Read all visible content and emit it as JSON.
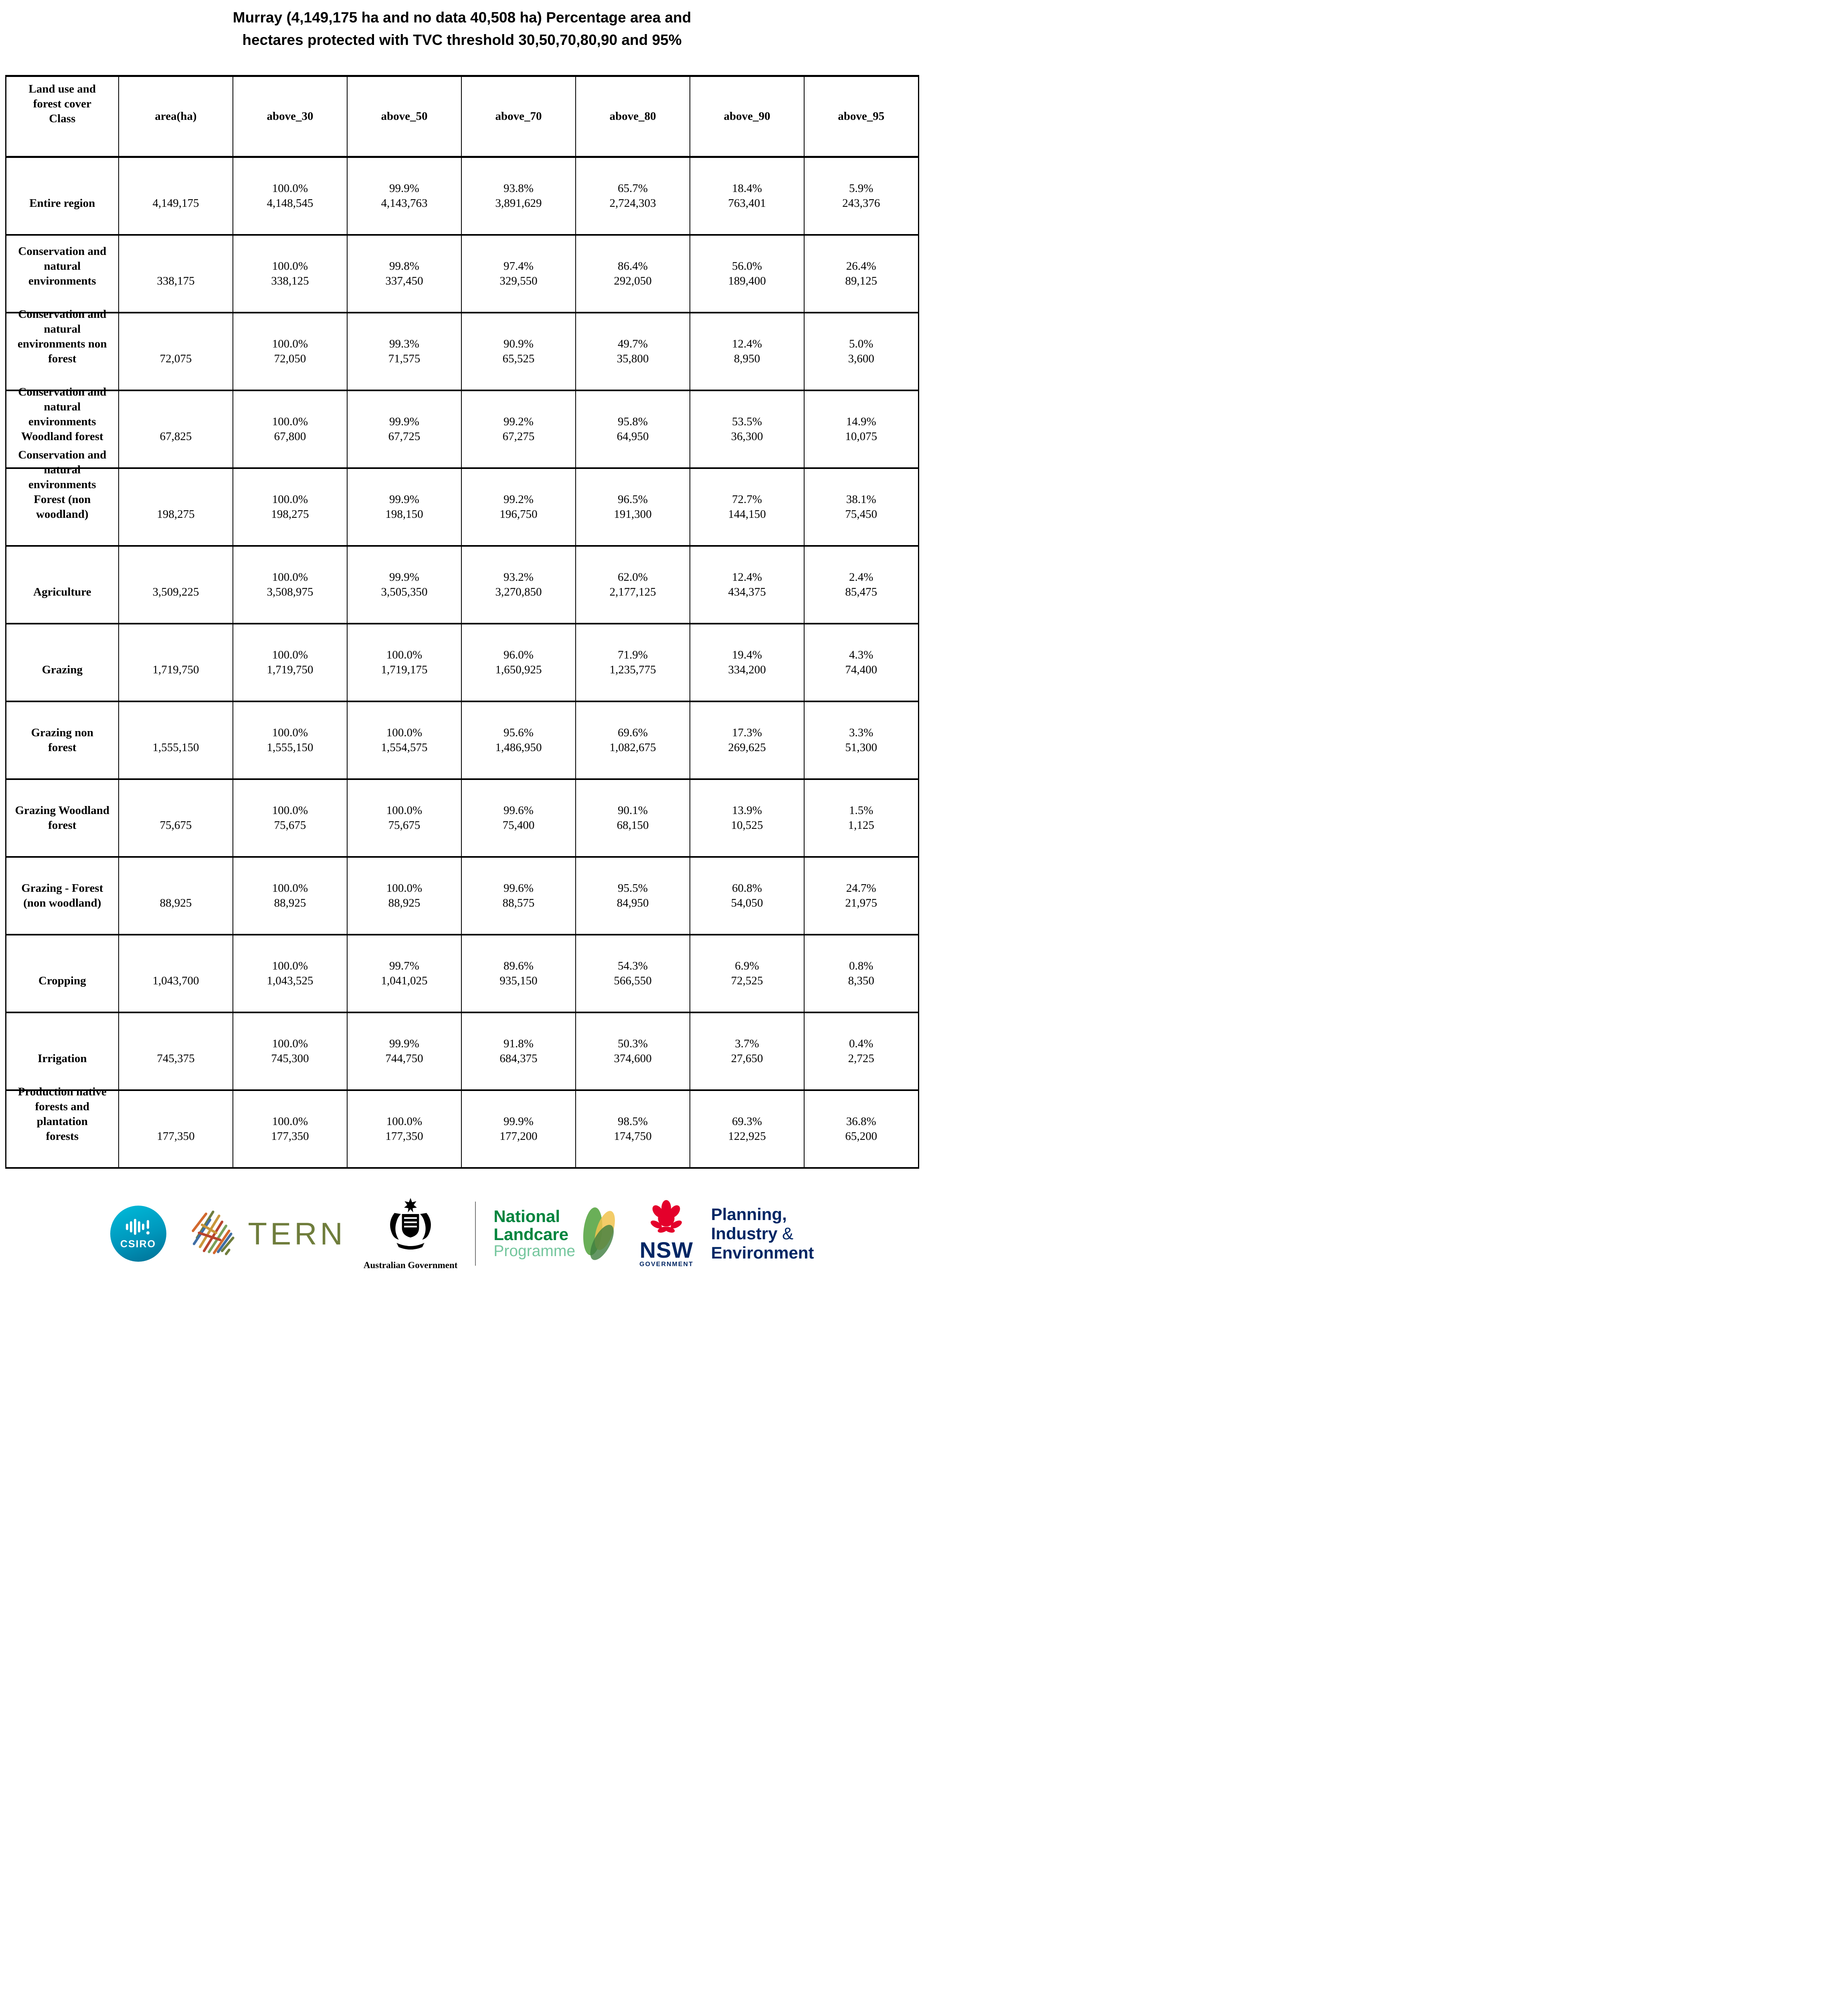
{
  "title": {
    "text": "Murray (4,149,175 ha and no data 40,508 ha) Percentage area and\nhectares protected with TVC threshold 30,50,70,80,90 and 95%"
  },
  "table": {
    "header": {
      "class_col": "Land use and\nforest cover\nClass",
      "cols": [
        "area(ha)",
        "above_30",
        "above_50",
        "above_70",
        "above_80",
        "above_90",
        "above_95"
      ]
    },
    "rows": [
      {
        "label": "Entire region",
        "area": "4,149,175",
        "values": [
          {
            "pct": "100.0%",
            "ha": "4,148,545"
          },
          {
            "pct": "99.9%",
            "ha": "4,143,763"
          },
          {
            "pct": "93.8%",
            "ha": "3,891,629"
          },
          {
            "pct": "65.7%",
            "ha": "2,724,303"
          },
          {
            "pct": "18.4%",
            "ha": "763,401"
          },
          {
            "pct": "5.9%",
            "ha": "243,376"
          }
        ]
      },
      {
        "label": "Conservation and\nnatural\nenvironments",
        "area": "338,175",
        "values": [
          {
            "pct": "100.0%",
            "ha": "338,125"
          },
          {
            "pct": "99.8%",
            "ha": "337,450"
          },
          {
            "pct": "97.4%",
            "ha": "329,550"
          },
          {
            "pct": "86.4%",
            "ha": "292,050"
          },
          {
            "pct": "56.0%",
            "ha": "189,400"
          },
          {
            "pct": "26.4%",
            "ha": "89,125"
          }
        ]
      },
      {
        "label": "Conservation and\nnatural\nenvironments non\nforest",
        "area": "72,075",
        "values": [
          {
            "pct": "100.0%",
            "ha": "72,050"
          },
          {
            "pct": "99.3%",
            "ha": "71,575"
          },
          {
            "pct": "90.9%",
            "ha": "65,525"
          },
          {
            "pct": "49.7%",
            "ha": "35,800"
          },
          {
            "pct": "12.4%",
            "ha": "8,950"
          },
          {
            "pct": "5.0%",
            "ha": "3,600"
          }
        ]
      },
      {
        "label": "Conservation and\nnatural\nenvironments\nWoodland forest",
        "area": "67,825",
        "values": [
          {
            "pct": "100.0%",
            "ha": "67,800"
          },
          {
            "pct": "99.9%",
            "ha": "67,725"
          },
          {
            "pct": "99.2%",
            "ha": "67,275"
          },
          {
            "pct": "95.8%",
            "ha": "64,950"
          },
          {
            "pct": "53.5%",
            "ha": "36,300"
          },
          {
            "pct": "14.9%",
            "ha": "10,075"
          }
        ]
      },
      {
        "label": "Conservation and\nnatural\nenvironments\nForest (non\nwoodland)",
        "area": "198,275",
        "values": [
          {
            "pct": "100.0%",
            "ha": "198,275"
          },
          {
            "pct": "99.9%",
            "ha": "198,150"
          },
          {
            "pct": "99.2%",
            "ha": "196,750"
          },
          {
            "pct": "96.5%",
            "ha": "191,300"
          },
          {
            "pct": "72.7%",
            "ha": "144,150"
          },
          {
            "pct": "38.1%",
            "ha": "75,450"
          }
        ]
      },
      {
        "label": "Agriculture",
        "area": "3,509,225",
        "values": [
          {
            "pct": "100.0%",
            "ha": "3,508,975"
          },
          {
            "pct": "99.9%",
            "ha": "3,505,350"
          },
          {
            "pct": "93.2%",
            "ha": "3,270,850"
          },
          {
            "pct": "62.0%",
            "ha": "2,177,125"
          },
          {
            "pct": "12.4%",
            "ha": "434,375"
          },
          {
            "pct": "2.4%",
            "ha": "85,475"
          }
        ]
      },
      {
        "label": "Grazing",
        "area": "1,719,750",
        "values": [
          {
            "pct": "100.0%",
            "ha": "1,719,750"
          },
          {
            "pct": "100.0%",
            "ha": "1,719,175"
          },
          {
            "pct": "96.0%",
            "ha": "1,650,925"
          },
          {
            "pct": "71.9%",
            "ha": "1,235,775"
          },
          {
            "pct": "19.4%",
            "ha": "334,200"
          },
          {
            "pct": "4.3%",
            "ha": "74,400"
          }
        ]
      },
      {
        "label": "Grazing non\nforest",
        "area": "1,555,150",
        "values": [
          {
            "pct": "100.0%",
            "ha": "1,555,150"
          },
          {
            "pct": "100.0%",
            "ha": "1,554,575"
          },
          {
            "pct": "95.6%",
            "ha": "1,486,950"
          },
          {
            "pct": "69.6%",
            "ha": "1,082,675"
          },
          {
            "pct": "17.3%",
            "ha": "269,625"
          },
          {
            "pct": "3.3%",
            "ha": "51,300"
          }
        ]
      },
      {
        "label": "Grazing Woodland\nforest",
        "area": "75,675",
        "values": [
          {
            "pct": "100.0%",
            "ha": "75,675"
          },
          {
            "pct": "100.0%",
            "ha": "75,675"
          },
          {
            "pct": "99.6%",
            "ha": "75,400"
          },
          {
            "pct": "90.1%",
            "ha": "68,150"
          },
          {
            "pct": "13.9%",
            "ha": "10,525"
          },
          {
            "pct": "1.5%",
            "ha": "1,125"
          }
        ]
      },
      {
        "label": "Grazing - Forest\n(non woodland)",
        "area": "88,925",
        "values": [
          {
            "pct": "100.0%",
            "ha": "88,925"
          },
          {
            "pct": "100.0%",
            "ha": "88,925"
          },
          {
            "pct": "99.6%",
            "ha": "88,575"
          },
          {
            "pct": "95.5%",
            "ha": "84,950"
          },
          {
            "pct": "60.8%",
            "ha": "54,050"
          },
          {
            "pct": "24.7%",
            "ha": "21,975"
          }
        ]
      },
      {
        "label": "Cropping",
        "area": "1,043,700",
        "values": [
          {
            "pct": "100.0%",
            "ha": "1,043,525"
          },
          {
            "pct": "99.7%",
            "ha": "1,041,025"
          },
          {
            "pct": "89.6%",
            "ha": "935,150"
          },
          {
            "pct": "54.3%",
            "ha": "566,550"
          },
          {
            "pct": "6.9%",
            "ha": "72,525"
          },
          {
            "pct": "0.8%",
            "ha": "8,350"
          }
        ]
      },
      {
        "label": "Irrigation",
        "area": "745,375",
        "values": [
          {
            "pct": "100.0%",
            "ha": "745,300"
          },
          {
            "pct": "99.9%",
            "ha": "744,750"
          },
          {
            "pct": "91.8%",
            "ha": "684,375"
          },
          {
            "pct": "50.3%",
            "ha": "374,600"
          },
          {
            "pct": "3.7%",
            "ha": "27,650"
          },
          {
            "pct": "0.4%",
            "ha": "2,725"
          }
        ]
      },
      {
        "label": "Production native\nforests and\nplantation\nforests",
        "area": "177,350",
        "values": [
          {
            "pct": "100.0%",
            "ha": "177,350"
          },
          {
            "pct": "100.0%",
            "ha": "177,350"
          },
          {
            "pct": "99.9%",
            "ha": "177,200"
          },
          {
            "pct": "98.5%",
            "ha": "174,750"
          },
          {
            "pct": "69.3%",
            "ha": "122,925"
          },
          {
            "pct": "36.8%",
            "ha": "65,200"
          }
        ]
      }
    ]
  },
  "footer": {
    "csiro": {
      "text": "CSIRO"
    },
    "tern": {
      "text": "TERN"
    },
    "aus_gov": {
      "text": "Australian Government"
    },
    "landcare": {
      "line1": "National",
      "line2": "Landcare",
      "line3": "Programme"
    },
    "nsw": {
      "text": "NSW",
      "sub": "GOVERNMENT"
    },
    "planning": {
      "line1": "Planning,",
      "line2_word": "Industry",
      "line2_amp": "&",
      "line3": "Environment"
    }
  },
  "colors": {
    "csiro_teal": "#0097bc",
    "tern_olive": "#6f7d3c",
    "landcare_green": "#00843d",
    "landcare_light_green": "#74c69d",
    "nsw_red": "#e4002b",
    "nsw_navy": "#002664"
  }
}
